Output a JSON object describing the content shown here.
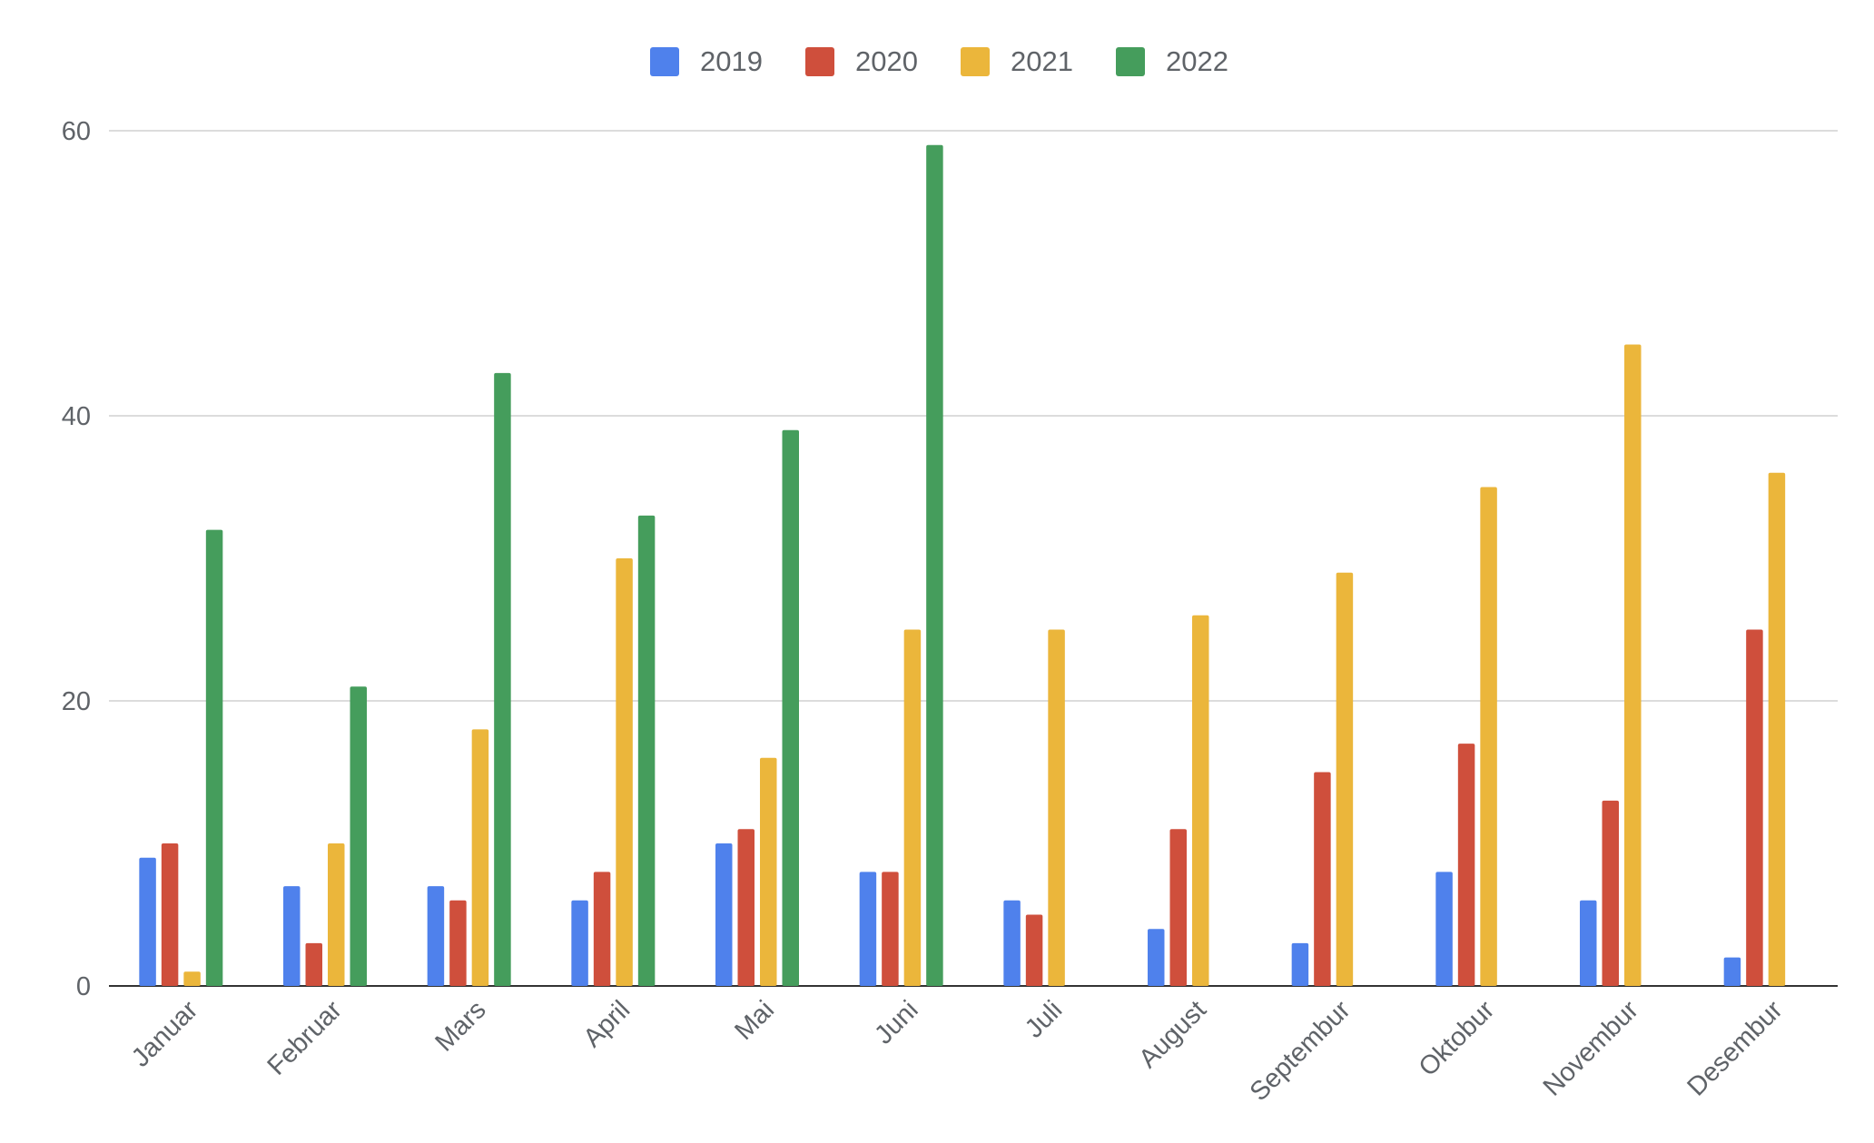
{
  "chart_data": {
    "type": "bar",
    "title": "",
    "xlabel": "",
    "ylabel": "",
    "ylim": [
      0,
      60
    ],
    "yticks": [
      0,
      20,
      40,
      60
    ],
    "grid": true,
    "legend_position": "top-center",
    "categories": [
      "Januar",
      "Februar",
      "Mars",
      "April",
      "Mai",
      "Juni",
      "Juli",
      "August",
      "Septembur",
      "Oktobur",
      "Novembur",
      "Desembur"
    ],
    "series": [
      {
        "name": "2019",
        "color": "#4f81ec",
        "values": [
          9,
          7,
          7,
          6,
          10,
          8,
          6,
          4,
          3,
          8,
          6,
          2
        ]
      },
      {
        "name": "2020",
        "color": "#cf4f3c",
        "values": [
          10,
          3,
          6,
          8,
          11,
          8,
          5,
          11,
          15,
          17,
          13,
          25
        ]
      },
      {
        "name": "2021",
        "color": "#ebb63b",
        "values": [
          1,
          10,
          18,
          30,
          16,
          25,
          25,
          26,
          29,
          35,
          45,
          36
        ]
      },
      {
        "name": "2022",
        "color": "#459d5c",
        "values": [
          32,
          21,
          43,
          33,
          39,
          59,
          null,
          null,
          null,
          null,
          null,
          null
        ]
      }
    ]
  }
}
